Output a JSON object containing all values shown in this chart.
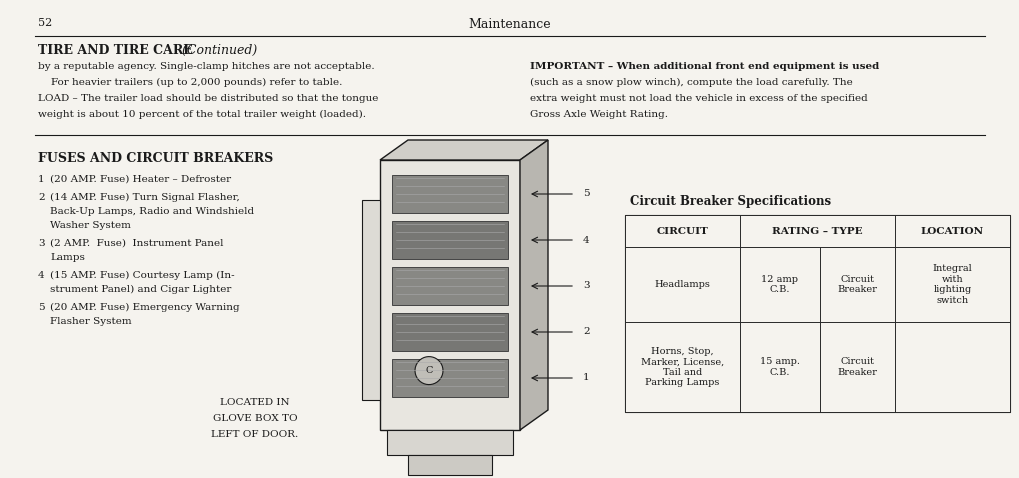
{
  "page_num": "52",
  "page_header": "Maintenance",
  "bg_color": "#f5f3ee",
  "text_color": "#1a1a1a",
  "section1_title": "TIRE AND TIRE CARE",
  "section1_title_italic": " (Continued)",
  "section1_left_lines": [
    "by a reputable agency. Single-clamp hitches are not acceptable.",
    "    For heavier trailers (up to 2,000 pounds) refer to table.",
    "LOAD – The trailer load should be distributed so that the tongue",
    "weight is about 10 percent of the total trailer weight (loaded)."
  ],
  "section1_right_para": [
    "IMPORTANT – When additional front end equipment is used",
    "(such as a snow plow winch), compute the load carefully. The",
    "extra weight must not load the vehicle in excess of the specified",
    "Gross Axle Weight Rating."
  ],
  "section2_title": "FUSES AND CIRCUIT BREAKERS",
  "fuse_items": [
    [
      "1",
      "(20 AMP. Fuse) Heater – Defroster"
    ],
    [
      "2",
      "(14 AMP. Fuse) Turn Signal Flasher,\n    Back-Up Lamps, Radio and Windshield\n    Washer System"
    ],
    [
      "3",
      "(2 AMP.  Fuse)  Instrument Panel\n    Lamps"
    ],
    [
      "4",
      "(15 AMP. Fuse) Courtesy Lamp (In-\n    strument Panel) and Cigar Lighter"
    ],
    [
      "5",
      "(20 AMP. Fuse) Emergency Warning\n    Flasher System"
    ]
  ],
  "located_text": [
    "LOCATED IN",
    "GLOVE BOX TO",
    "LEFT OF DOOR."
  ],
  "cb_title": "Circuit Breaker Specifications",
  "table_headers": [
    "CIRCUIT",
    "RATING – TYPE",
    "LOCATION"
  ],
  "table_row1_circuit": "Headlamps",
  "table_row1_rating": "12 amp\nC.B.",
  "table_row1_type": "Circuit\nBreaker",
  "table_row1_location": "Integral\nwith\nlighting\nswitch",
  "table_row2_circuit": "Horns, Stop,\nMarker, License,\nTail and\nParking Lamps",
  "table_row2_rating": "15 amp.\nC.B.",
  "table_row2_type": "Circuit\nBreaker",
  "table_row2_location": ""
}
